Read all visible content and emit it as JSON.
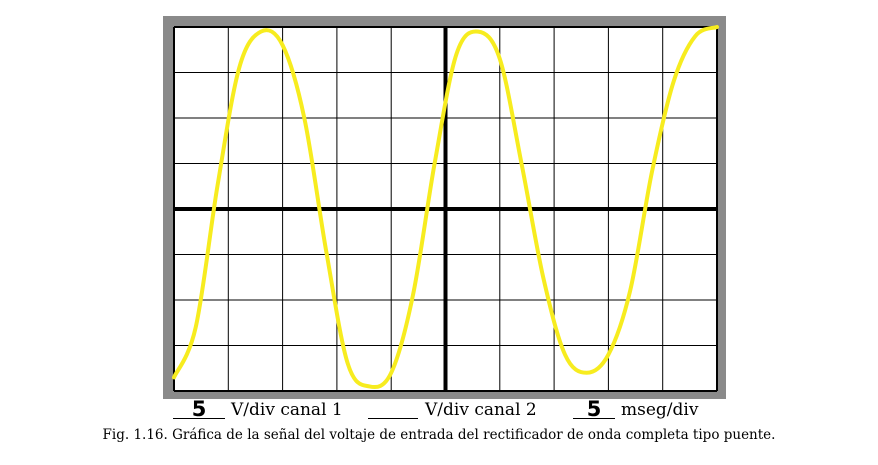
{
  "chart_data": {
    "type": "line",
    "grid": true,
    "grid_divisions": {
      "x": 10,
      "y": 8
    },
    "x": [
      0,
      0.4,
      0.8,
      1.2,
      1.6,
      2.0,
      2.4,
      2.8,
      3.2,
      3.6,
      4.0,
      4.4,
      4.8,
      5.2,
      5.6,
      6.0,
      6.4,
      6.8,
      7.2,
      7.6,
      8.0,
      8.4,
      8.8,
      9.2,
      9.6,
      10.0
    ],
    "values": [
      -3.7,
      -2.6,
      0.5,
      3.1,
      3.9,
      3.6,
      2.0,
      -0.9,
      -3.4,
      -3.9,
      -3.6,
      -1.9,
      1.0,
      3.4,
      3.9,
      3.3,
      1.0,
      -1.5,
      -3.2,
      -3.6,
      -3.2,
      -1.8,
      0.8,
      2.8,
      3.8,
      4.0
    ],
    "xlim": [
      0,
      10
    ],
    "ylim": [
      -4,
      4
    ],
    "line_color": "#f7ec1f",
    "grid_color": "#000000",
    "background": "#ffffff",
    "frame_color": "#8a8a8a"
  },
  "scale": {
    "ch1_value": "5",
    "ch1_unit": "V/div canal 1",
    "ch2_value": "",
    "ch2_unit": "V/div canal 2",
    "time_value": "5",
    "time_unit": "mseg/div"
  },
  "caption": "Fig. 1.16. Gráfica de la señal del voltaje de entrada del rectificador de onda completa tipo puente."
}
